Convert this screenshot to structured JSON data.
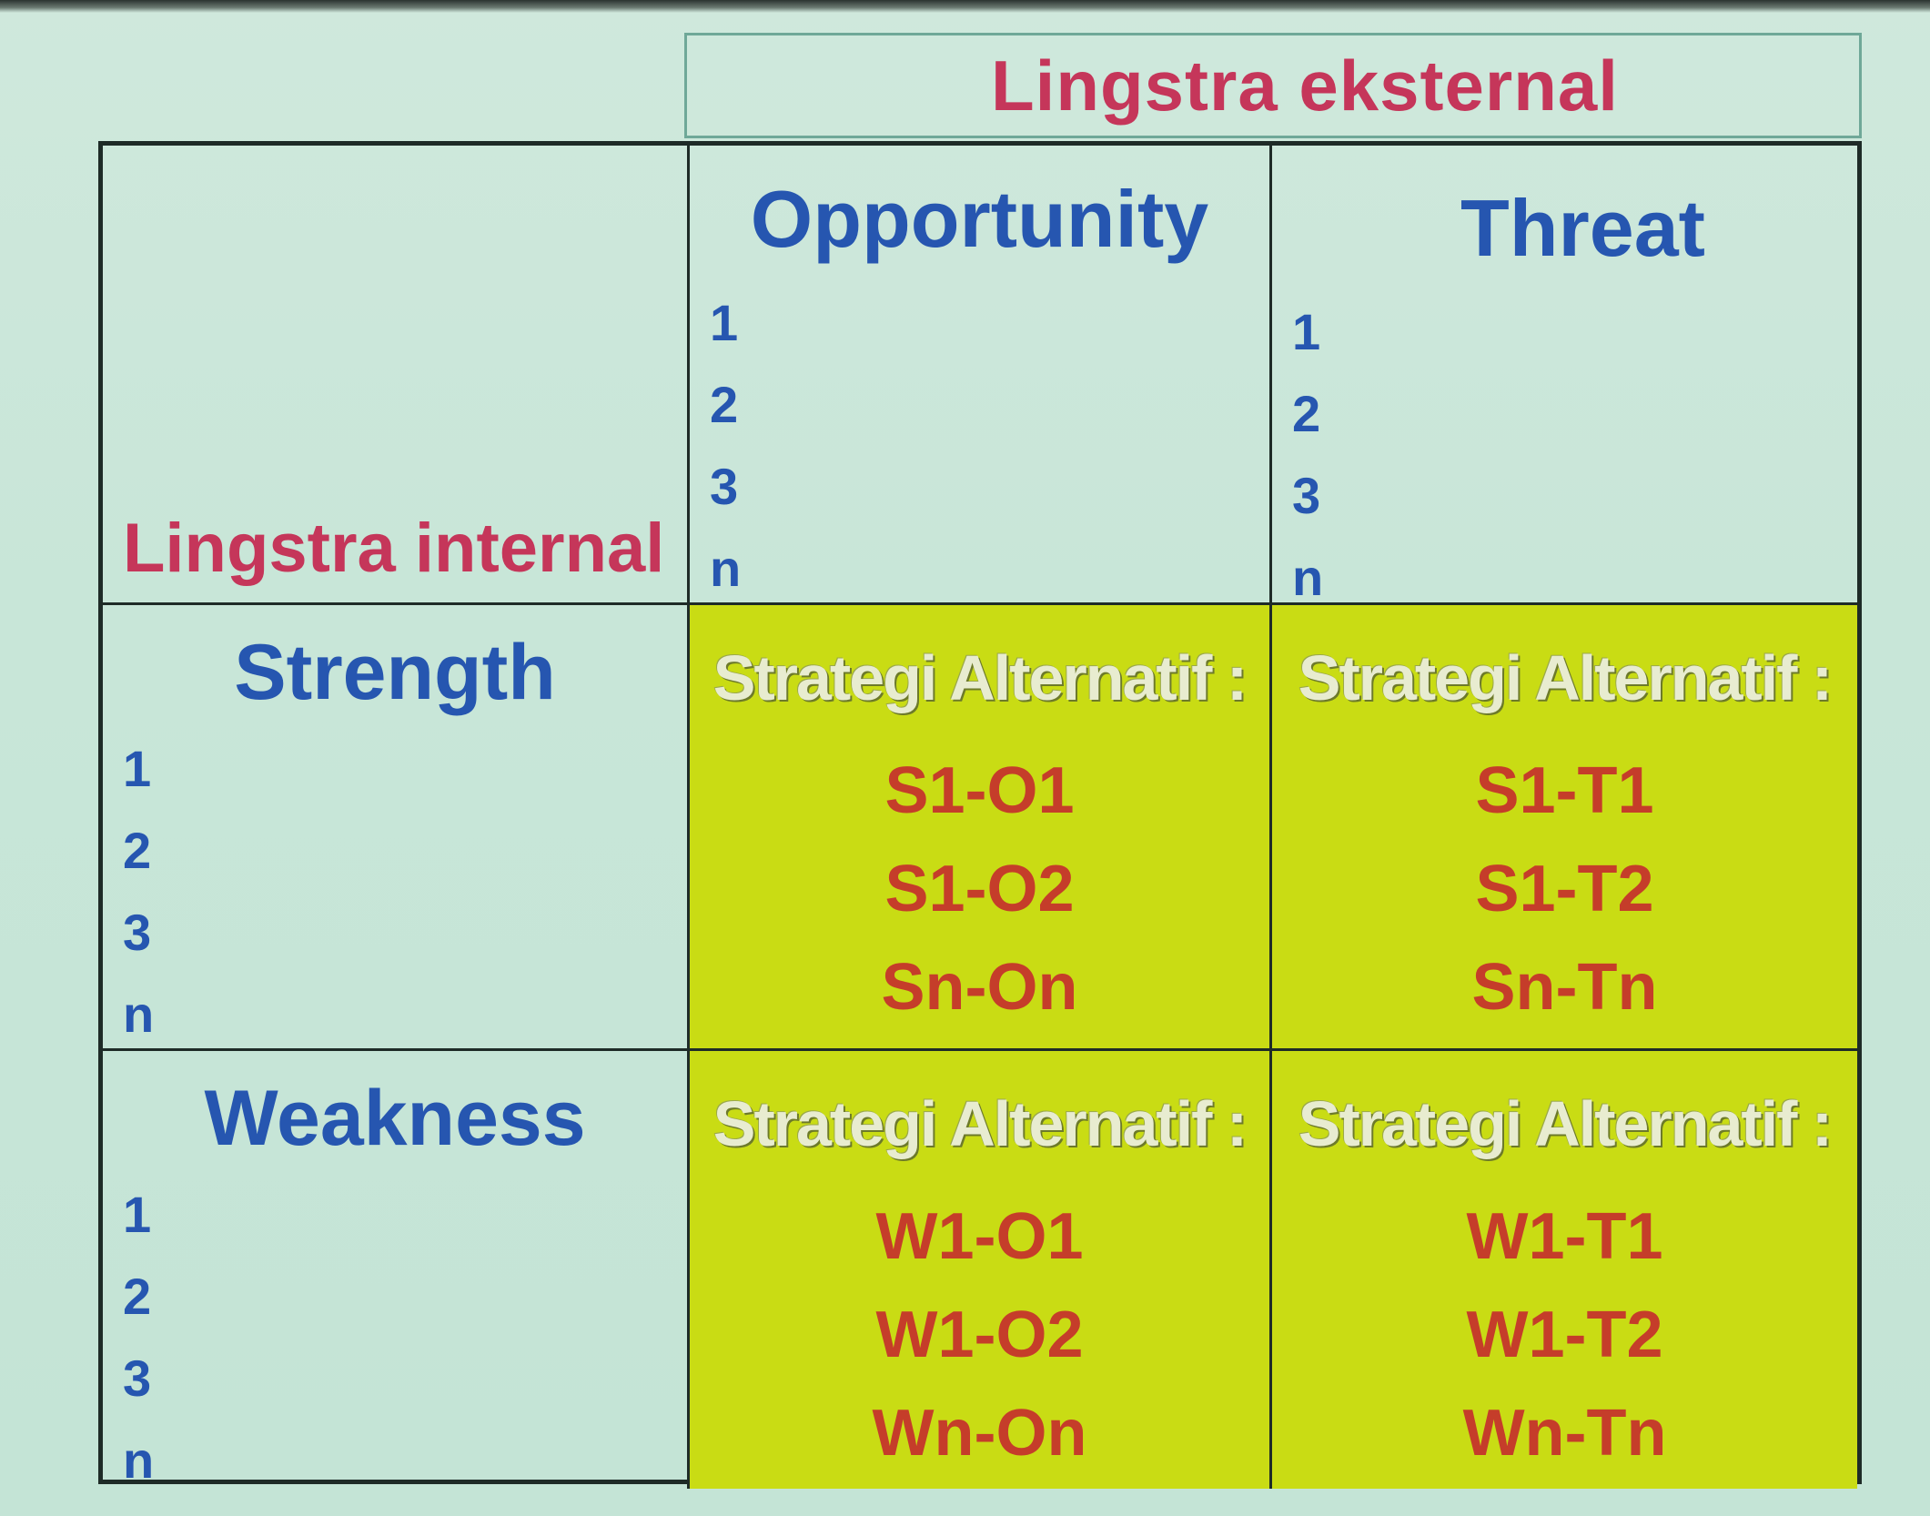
{
  "external_title": "Lingstra eksternal",
  "internal_title": "Lingstra internal",
  "columns": [
    {
      "title": "Opportunity",
      "items": [
        "1",
        "2",
        "3",
        "n"
      ]
    },
    {
      "title": "Threat",
      "items": [
        "1",
        "2",
        "3",
        "n"
      ]
    }
  ],
  "rows": [
    {
      "title": "Strength",
      "items": [
        "1",
        "2",
        "3",
        "n"
      ]
    },
    {
      "title": "Weakness",
      "items": [
        "1",
        "2",
        "3",
        "n"
      ]
    }
  ],
  "strategies": {
    "label": "Strategi Alternatif :",
    "so": [
      "S1-O1",
      "S1-O2",
      "Sn-On"
    ],
    "st": [
      "S1-T1",
      "S1-T2",
      "Sn-Tn"
    ],
    "wo": [
      "W1-O1",
      "W1-O2",
      "Wn-On"
    ],
    "wt": [
      "W1-T1",
      "W1-T2",
      "Wn-Tn"
    ]
  },
  "colors": {
    "title_red": "#c5365a",
    "header_blue": "#2656b0",
    "strategy_fill": "#c9dc14",
    "strategy_text": "#c53d2a",
    "background": "#c8e6d8"
  }
}
